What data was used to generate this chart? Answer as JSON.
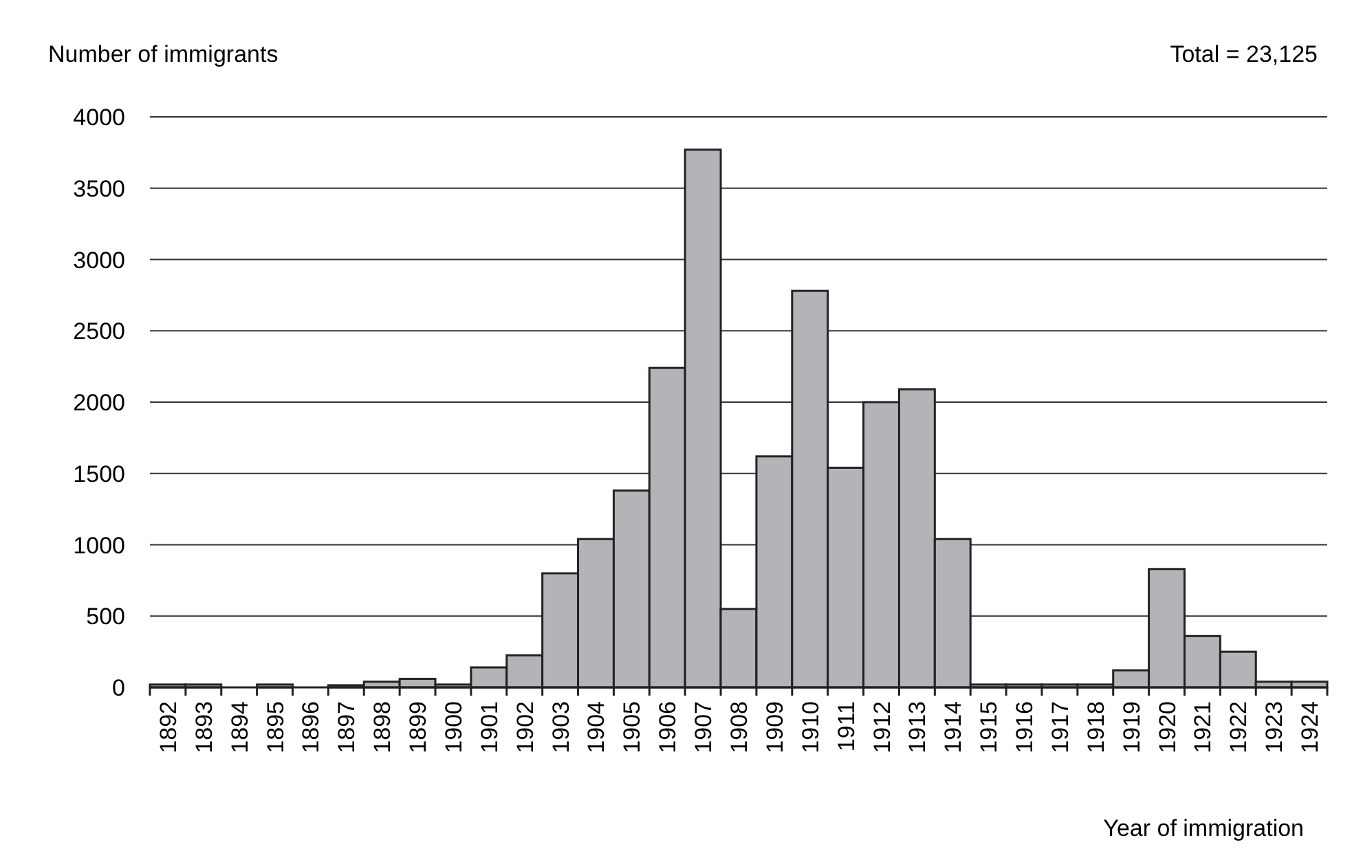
{
  "chart_data": {
    "type": "bar",
    "xlabel": "Year of immigration",
    "ylabel": "Number of immigrants",
    "annotations": [
      "Total = 23,125"
    ],
    "categories": [
      "1892",
      "1893",
      "1894",
      "1895",
      "1896",
      "1897",
      "1898",
      "1899",
      "1900",
      "1901",
      "1902",
      "1903",
      "1904",
      "1905",
      "1906",
      "1907",
      "1908",
      "1909",
      "1910",
      "1911",
      "1912",
      "1913",
      "1914",
      "1915",
      "1916",
      "1917",
      "1918",
      "1919",
      "1920",
      "1921",
      "1922",
      "1923",
      "1924"
    ],
    "values": [
      20,
      20,
      0,
      20,
      0,
      15,
      40,
      60,
      20,
      140,
      225,
      800,
      1040,
      1380,
      2240,
      3770,
      550,
      1620,
      2780,
      1540,
      2000,
      2090,
      1040,
      20,
      20,
      20,
      20,
      120,
      830,
      360,
      250,
      40,
      40
    ],
    "color": "#b3b4b8",
    "ylim": [
      0,
      4000
    ],
    "yticks": [
      0,
      500,
      1000,
      1500,
      2000,
      2500,
      3000,
      3500,
      4000
    ],
    "grid": "y"
  }
}
